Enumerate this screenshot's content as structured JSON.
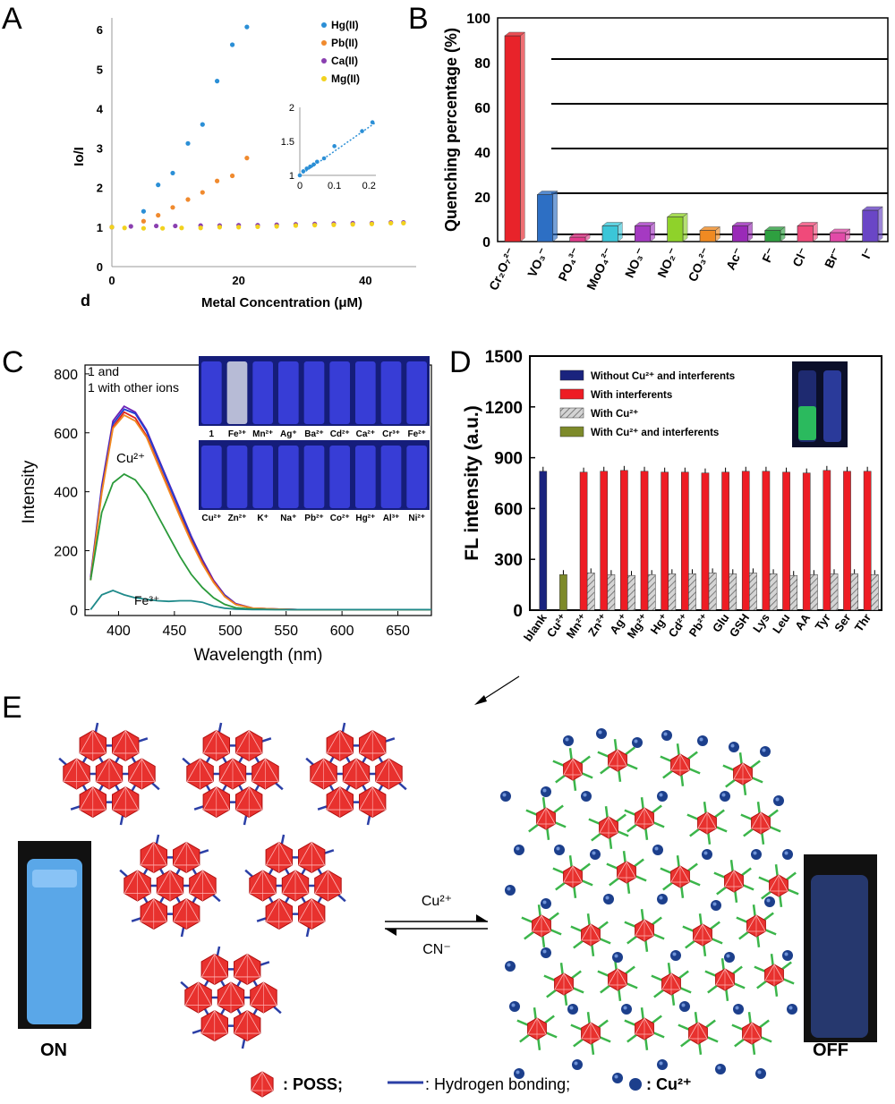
{
  "panel_labels": {
    "A": "A",
    "B": "B",
    "C": "C",
    "D": "D",
    "E": "E",
    "d": "d"
  },
  "chart_data": [
    {
      "id": "A",
      "type": "scatter",
      "xlabel": "Metal Concentration (μM)",
      "ylabel": "Io/I",
      "xlim": [
        0,
        48
      ],
      "ylim": [
        0,
        6.3
      ],
      "xticks": [
        0,
        20,
        40
      ],
      "yticks": [
        0,
        1,
        2,
        3,
        4,
        5,
        6
      ],
      "legend_position": "top-right",
      "series": [
        {
          "name": "Hg(II)",
          "color": "#2b8fd6",
          "x": [
            0,
            5,
            7.3,
            9.6,
            12,
            14.3,
            16.6,
            19,
            21.3
          ],
          "y": [
            1.0,
            1.4,
            2.07,
            2.37,
            3.12,
            3.6,
            4.7,
            5.62,
            6.07
          ]
        },
        {
          "name": "Pb(II)",
          "color": "#f08a2e",
          "x": [
            0,
            5,
            7.3,
            9.6,
            12,
            14.3,
            16.6,
            19,
            21.3
          ],
          "y": [
            1.0,
            1.15,
            1.3,
            1.5,
            1.7,
            1.88,
            2.17,
            2.3,
            2.75
          ]
        },
        {
          "name": "Ca(II)",
          "color": "#8a3fb0",
          "x": [
            0,
            3,
            7,
            10,
            14,
            17,
            20,
            23,
            26,
            29,
            32,
            35,
            38,
            41,
            44,
            46
          ],
          "y": [
            1.0,
            1.02,
            1.03,
            1.03,
            1.04,
            1.04,
            1.05,
            1.05,
            1.06,
            1.07,
            1.08,
            1.09,
            1.1,
            1.1,
            1.12,
            1.12
          ]
        },
        {
          "name": "Mg(II)",
          "color": "#f2d21e",
          "x": [
            0,
            2,
            5,
            8,
            11,
            14,
            17,
            20,
            23,
            26,
            29,
            32,
            35,
            38,
            41,
            44,
            46
          ],
          "y": [
            1.0,
            0.98,
            0.97,
            0.97,
            0.98,
            0.98,
            1.0,
            1.0,
            1.01,
            1.02,
            1.04,
            1.05,
            1.06,
            1.07,
            1.08,
            1.1,
            1.1
          ]
        }
      ],
      "inset": {
        "xlim": [
          0,
          0.22
        ],
        "ylim": [
          1,
          2
        ],
        "xticks": [
          0,
          0.1,
          0.2
        ],
        "yticks": [
          1,
          1.5,
          2
        ],
        "x": [
          0,
          0.01,
          0.02,
          0.03,
          0.04,
          0.05,
          0.07,
          0.1,
          0.18,
          0.21
        ],
        "y": [
          1.0,
          1.06,
          1.1,
          1.13,
          1.16,
          1.2,
          1.25,
          1.43,
          1.65,
          1.78
        ],
        "color": "#2b8fd6",
        "fit": [
          [
            0,
            1.0
          ],
          [
            0.22,
            1.78
          ]
        ]
      }
    },
    {
      "id": "B",
      "type": "bar",
      "ylabel": "Quenching percentage (%)",
      "ylim": [
        0,
        100
      ],
      "yticks": [
        0,
        20,
        40,
        60,
        80,
        100
      ],
      "categories": [
        "Cr₂O₇²⁻",
        "VO₃⁻",
        "PO₄³⁻",
        "MoO₄²⁻",
        "NO₃⁻",
        "NO₂⁻",
        "CO₃²⁻",
        "Ac⁻",
        "F⁻",
        "Cl⁻",
        "Br⁻",
        "I⁻"
      ],
      "values": [
        92,
        21,
        2,
        7,
        7,
        11,
        5,
        7,
        5,
        7,
        4,
        14
      ],
      "colors": [
        "#e8232a",
        "#2d6fc4",
        "#e33b8b",
        "#3bc6d8",
        "#a53ac2",
        "#8fd22a",
        "#f08a22",
        "#9a2ab8",
        "#2ea040",
        "#f04a7a",
        "#e24aa8",
        "#6a46c6"
      ]
    },
    {
      "id": "C",
      "type": "line",
      "xlabel": "Wavelength (nm)",
      "ylabel": "Intensity",
      "xlim": [
        370,
        680
      ],
      "ylim": [
        -20,
        830
      ],
      "xticks": [
        400,
        450,
        500,
        550,
        600,
        650
      ],
      "yticks": [
        0,
        200,
        400,
        600,
        800
      ],
      "legend_text": [
        "1 and",
        "1 with other ions"
      ],
      "annotations": [
        "Cu²⁺",
        "Fe³⁺"
      ],
      "series": [
        {
          "color": "#6a1fb5",
          "x": [
            375,
            385,
            395,
            405,
            415,
            425,
            435,
            445,
            455,
            465,
            475,
            485,
            495,
            505,
            520,
            540,
            560,
            600,
            650,
            680
          ],
          "y": [
            110,
            420,
            640,
            690,
            670,
            610,
            520,
            430,
            340,
            250,
            170,
            100,
            50,
            20,
            5,
            2,
            0,
            0,
            0,
            0
          ]
        },
        {
          "color": "#1f3fd0",
          "x": [
            375,
            385,
            395,
            405,
            415,
            425,
            435,
            445,
            455,
            465,
            475,
            485,
            495,
            505,
            520,
            540,
            560,
            600,
            650,
            680
          ],
          "y": [
            105,
            410,
            630,
            680,
            665,
            605,
            515,
            425,
            335,
            245,
            165,
            95,
            48,
            18,
            5,
            2,
            0,
            0,
            0,
            0
          ]
        },
        {
          "color": "#e0261f",
          "x": [
            375,
            385,
            395,
            405,
            415,
            425,
            435,
            445,
            455,
            465,
            475,
            485,
            495,
            505,
            520,
            540,
            560,
            600,
            650,
            680
          ],
          "y": [
            100,
            400,
            620,
            670,
            650,
            590,
            500,
            410,
            320,
            235,
            160,
            95,
            45,
            18,
            5,
            2,
            0,
            0,
            0,
            0
          ]
        },
        {
          "color": "#f08a22",
          "x": [
            375,
            385,
            395,
            405,
            415,
            425,
            435,
            445,
            455,
            465,
            475,
            485,
            495,
            505,
            520,
            540,
            560,
            600,
            650,
            680
          ],
          "y": [
            100,
            395,
            615,
            660,
            640,
            585,
            495,
            405,
            315,
            230,
            155,
            92,
            44,
            17,
            5,
            2,
            0,
            0,
            0,
            0
          ]
        },
        {
          "color": "#2a9a3a",
          "x": [
            375,
            385,
            395,
            405,
            415,
            425,
            435,
            445,
            455,
            465,
            475,
            485,
            495,
            505,
            520,
            540,
            560,
            600,
            650,
            680
          ],
          "y": [
            100,
            330,
            430,
            460,
            440,
            390,
            320,
            250,
            180,
            120,
            75,
            40,
            18,
            6,
            2,
            0,
            0,
            0,
            0,
            0
          ]
        },
        {
          "color": "#1f8a8a",
          "x": [
            375,
            385,
            395,
            405,
            415,
            425,
            435,
            445,
            455,
            465,
            475,
            485,
            495,
            505,
            520,
            540,
            560,
            600,
            650,
            680
          ],
          "y": [
            0,
            50,
            65,
            50,
            40,
            35,
            30,
            28,
            30,
            30,
            25,
            12,
            5,
            2,
            0,
            0,
            0,
            0,
            0,
            0
          ]
        }
      ],
      "inset_vials_top": [
        "1",
        "Fe³⁺",
        "Mn²⁺",
        "Ag⁺",
        "Ba²⁺",
        "Cd²⁺",
        "Ca²⁺",
        "Cr³⁺",
        "Fe²⁺"
      ],
      "inset_vials_bottom": [
        "Cu²⁺",
        "Zn²⁺",
        "K⁺",
        "Na⁺",
        "Pb²⁺",
        "Co²⁺",
        "Hg²⁺",
        "Al³⁺",
        "Ni²⁺"
      ]
    },
    {
      "id": "D",
      "type": "bar",
      "ylabel": "FL intensity (a.u.)",
      "ylim": [
        0,
        1500
      ],
      "yticks": [
        0,
        300,
        600,
        900,
        1200,
        1500
      ],
      "categories": [
        "blank",
        "Cu²⁺",
        "Mn²⁺",
        "Zn²⁺",
        "Ag⁺",
        "Mg²⁺",
        "Hg⁺",
        "Cd²⁺",
        "Pb²⁺",
        "Glu",
        "GSH",
        "Lys",
        "Leu",
        "AA",
        "Tyr",
        "Ser",
        "Thr"
      ],
      "legend": [
        "Without Cu²⁺ and interferents",
        "With interferents",
        "With Cu²⁺",
        "With Cu²⁺ and interferents"
      ],
      "series": [
        {
          "name": "Without Cu²⁺ and interferents",
          "color": "#1a237e",
          "values": [
            820,
            null,
            null,
            null,
            null,
            null,
            null,
            null,
            null,
            null,
            null,
            null,
            null,
            null,
            null,
            null,
            null
          ]
        },
        {
          "name": "With interferents",
          "color": "#ee1c24",
          "values": [
            null,
            null,
            815,
            820,
            825,
            820,
            815,
            815,
            810,
            815,
            820,
            820,
            815,
            810,
            825,
            820,
            820
          ]
        },
        {
          "name": "With Cu²⁺",
          "color": "#b8b8b8",
          "values": [
            null,
            null,
            220,
            210,
            205,
            210,
            215,
            215,
            220,
            215,
            220,
            215,
            205,
            210,
            215,
            215,
            210
          ]
        },
        {
          "name": "With Cu²⁺ and interferents",
          "color": "#7d8a2a",
          "values": [
            null,
            210,
            null,
            null,
            null,
            null,
            null,
            null,
            null,
            null,
            null,
            null,
            null,
            null,
            null,
            null,
            null
          ]
        }
      ]
    }
  ],
  "scheme": {
    "arrow_forward": "Cu²⁺",
    "arrow_backward": "CN⁻",
    "left_state": "ON",
    "right_state": "OFF",
    "legend": {
      "poss": ": POSS;",
      "hbond": ": Hydrogen bonding;",
      "cu": ": Cu²⁺"
    },
    "colors": {
      "poss": "#e8312e",
      "bond": "#2b3fa6",
      "ligand": "#3bb54a",
      "cu": "#1c3f8c"
    }
  }
}
